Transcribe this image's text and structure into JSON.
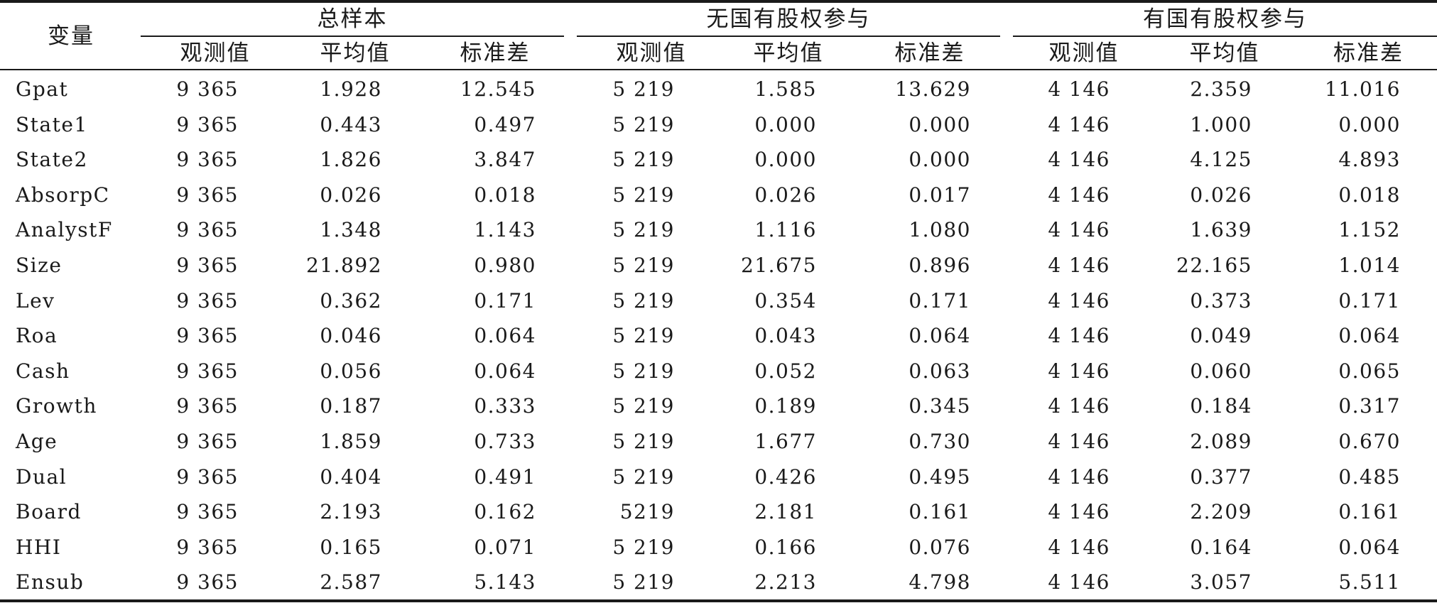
{
  "table": {
    "var_header": "变量",
    "groups": [
      {
        "title": "总样本",
        "sub": [
          "观测值",
          "平均值",
          "标准差"
        ]
      },
      {
        "title": "无国有股权参与",
        "sub": [
          "观测值",
          "平均值",
          "标准差"
        ]
      },
      {
        "title": "有国有股权参与",
        "sub": [
          "观测值",
          "平均值",
          "标准差"
        ]
      }
    ],
    "rows": [
      {
        "name": "Gpat",
        "v": [
          "9 365",
          "1.928",
          "12.545",
          "5 219",
          "1.585",
          "13.629",
          "4 146",
          "2.359",
          "11.016"
        ]
      },
      {
        "name": "State1",
        "v": [
          "9 365",
          "0.443",
          "0.497",
          "5 219",
          "0.000",
          "0.000",
          "4 146",
          "1.000",
          "0.000"
        ]
      },
      {
        "name": "State2",
        "v": [
          "9 365",
          "1.826",
          "3.847",
          "5 219",
          "0.000",
          "0.000",
          "4 146",
          "4.125",
          "4.893"
        ]
      },
      {
        "name": "AbsorpC",
        "v": [
          "9 365",
          "0.026",
          "0.018",
          "5 219",
          "0.026",
          "0.017",
          "4 146",
          "0.026",
          "0.018"
        ]
      },
      {
        "name": "AnalystF",
        "v": [
          "9 365",
          "1.348",
          "1.143",
          "5 219",
          "1.116",
          "1.080",
          "4 146",
          "1.639",
          "1.152"
        ]
      },
      {
        "name": "Size",
        "v": [
          "9 365",
          "21.892",
          "0.980",
          "5 219",
          "21.675",
          "0.896",
          "4 146",
          "22.165",
          "1.014"
        ]
      },
      {
        "name": "Lev",
        "v": [
          "9 365",
          "0.362",
          "0.171",
          "5 219",
          "0.354",
          "0.171",
          "4 146",
          "0.373",
          "0.171"
        ]
      },
      {
        "name": "Roa",
        "v": [
          "9 365",
          "0.046",
          "0.064",
          "5 219",
          "0.043",
          "0.064",
          "4 146",
          "0.049",
          "0.064"
        ]
      },
      {
        "name": "Cash",
        "v": [
          "9 365",
          "0.056",
          "0.064",
          "5 219",
          "0.052",
          "0.063",
          "4 146",
          "0.060",
          "0.065"
        ]
      },
      {
        "name": "Growth",
        "v": [
          "9 365",
          "0.187",
          "0.333",
          "5 219",
          "0.189",
          "0.345",
          "4 146",
          "0.184",
          "0.317"
        ]
      },
      {
        "name": "Age",
        "v": [
          "9 365",
          "1.859",
          "0.733",
          "5 219",
          "1.677",
          "0.730",
          "4 146",
          "2.089",
          "0.670"
        ]
      },
      {
        "name": "Dual",
        "v": [
          "9 365",
          "0.404",
          "0.491",
          "5 219",
          "0.426",
          "0.495",
          "4 146",
          "0.377",
          "0.485"
        ]
      },
      {
        "name": "Board",
        "v": [
          "9 365",
          "2.193",
          "0.162",
          "5219",
          "2.181",
          "0.161",
          "4 146",
          "2.209",
          "0.161"
        ]
      },
      {
        "name": "HHI",
        "v": [
          "9 365",
          "0.165",
          "0.071",
          "5 219",
          "0.166",
          "0.076",
          "4 146",
          "0.164",
          "0.064"
        ]
      },
      {
        "name": "Ensub",
        "v": [
          "9 365",
          "2.587",
          "5.143",
          "5 219",
          "2.213",
          "4.798",
          "4 146",
          "3.057",
          "5.511"
        ]
      }
    ]
  }
}
